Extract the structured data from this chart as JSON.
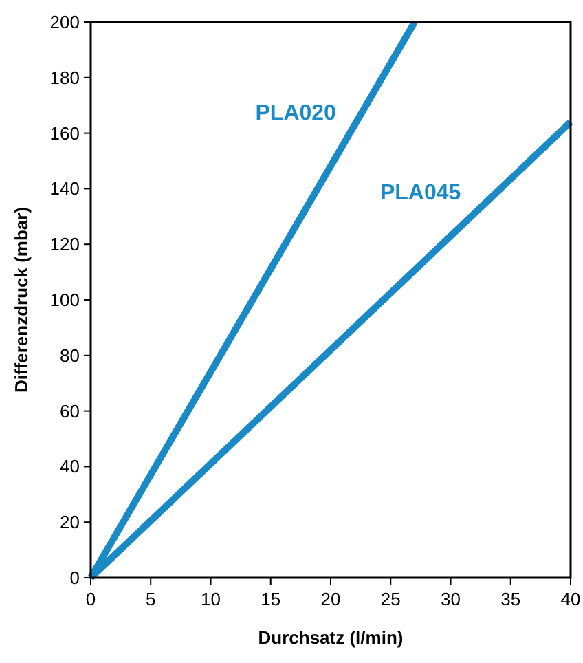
{
  "chart_data": {
    "type": "line",
    "xlabel": "Durchsatz (l/min)",
    "ylabel": "Differenzdruck (mbar)",
    "xlim": [
      0,
      40
    ],
    "ylim": [
      0,
      200
    ],
    "xticks": [
      0,
      5,
      10,
      15,
      20,
      25,
      30,
      35,
      40
    ],
    "yticks": [
      0,
      20,
      40,
      60,
      80,
      100,
      120,
      140,
      160,
      180,
      200
    ],
    "grid": false,
    "marker": "none",
    "line_style": "solid",
    "series": [
      {
        "name": "PLA020",
        "color": "#1a8ac6",
        "x": [
          0,
          27
        ],
        "values": [
          0,
          200
        ]
      },
      {
        "name": "PLA045",
        "color": "#1a8ac6",
        "x": [
          0,
          40
        ],
        "values": [
          0,
          164
        ]
      }
    ]
  }
}
